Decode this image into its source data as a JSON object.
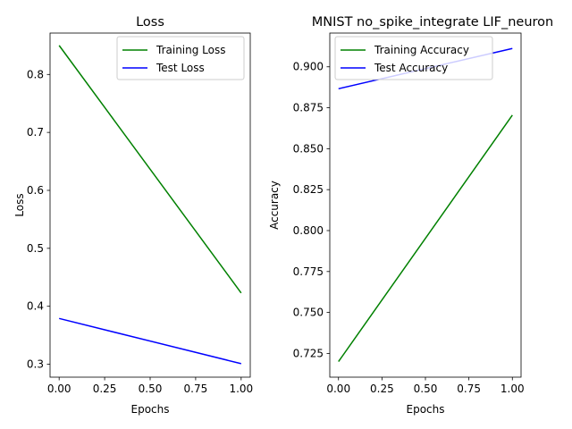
{
  "chart_data": [
    {
      "type": "line",
      "title": "Loss",
      "xlabel": "Epochs",
      "ylabel": "Loss",
      "xlim": [
        -0.05,
        1.05
      ],
      "ylim": [
        0.2777,
        0.8714
      ],
      "xticks": [
        0.0,
        0.25,
        0.5,
        0.75,
        1.0
      ],
      "xtick_labels": [
        "0.00",
        "0.25",
        "0.50",
        "0.75",
        "1.00"
      ],
      "yticks": [
        0.3,
        0.4,
        0.5,
        0.6,
        0.7,
        0.8
      ],
      "ytick_labels": [
        "0.3",
        "0.4",
        "0.5",
        "0.6",
        "0.7",
        "0.8"
      ],
      "grid": false,
      "legend": "top-right",
      "x": [
        0,
        1
      ],
      "series": [
        {
          "name": "Training Loss",
          "values": [
            0.85,
            0.423
          ],
          "color": "#008000"
        },
        {
          "name": "Test Loss",
          "values": [
            0.379,
            0.301
          ],
          "color": "#0000ff"
        }
      ]
    },
    {
      "type": "line",
      "title": "MNIST no_spike_integrate LIF_neuron",
      "xlabel": "Epochs",
      "ylabel": "Accuracy",
      "xlim": [
        -0.05,
        1.05
      ],
      "ylim": [
        0.7105,
        0.9206
      ],
      "xticks": [
        0.0,
        0.25,
        0.5,
        0.75,
        1.0
      ],
      "xtick_labels": [
        "0.00",
        "0.25",
        "0.50",
        "0.75",
        "1.00"
      ],
      "yticks": [
        0.725,
        0.75,
        0.775,
        0.8,
        0.825,
        0.85,
        0.875,
        0.9
      ],
      "ytick_labels": [
        "0.725",
        "0.750",
        "0.775",
        "0.800",
        "0.825",
        "0.850",
        "0.875",
        "0.900"
      ],
      "grid": false,
      "legend": "top-left",
      "x": [
        0,
        1
      ],
      "series": [
        {
          "name": "Training Accuracy",
          "values": [
            0.72,
            0.8705
          ],
          "color": "#008000"
        },
        {
          "name": "Test Accuracy",
          "values": [
            0.8866,
            0.9112
          ],
          "color": "#0000ff"
        }
      ]
    }
  ]
}
